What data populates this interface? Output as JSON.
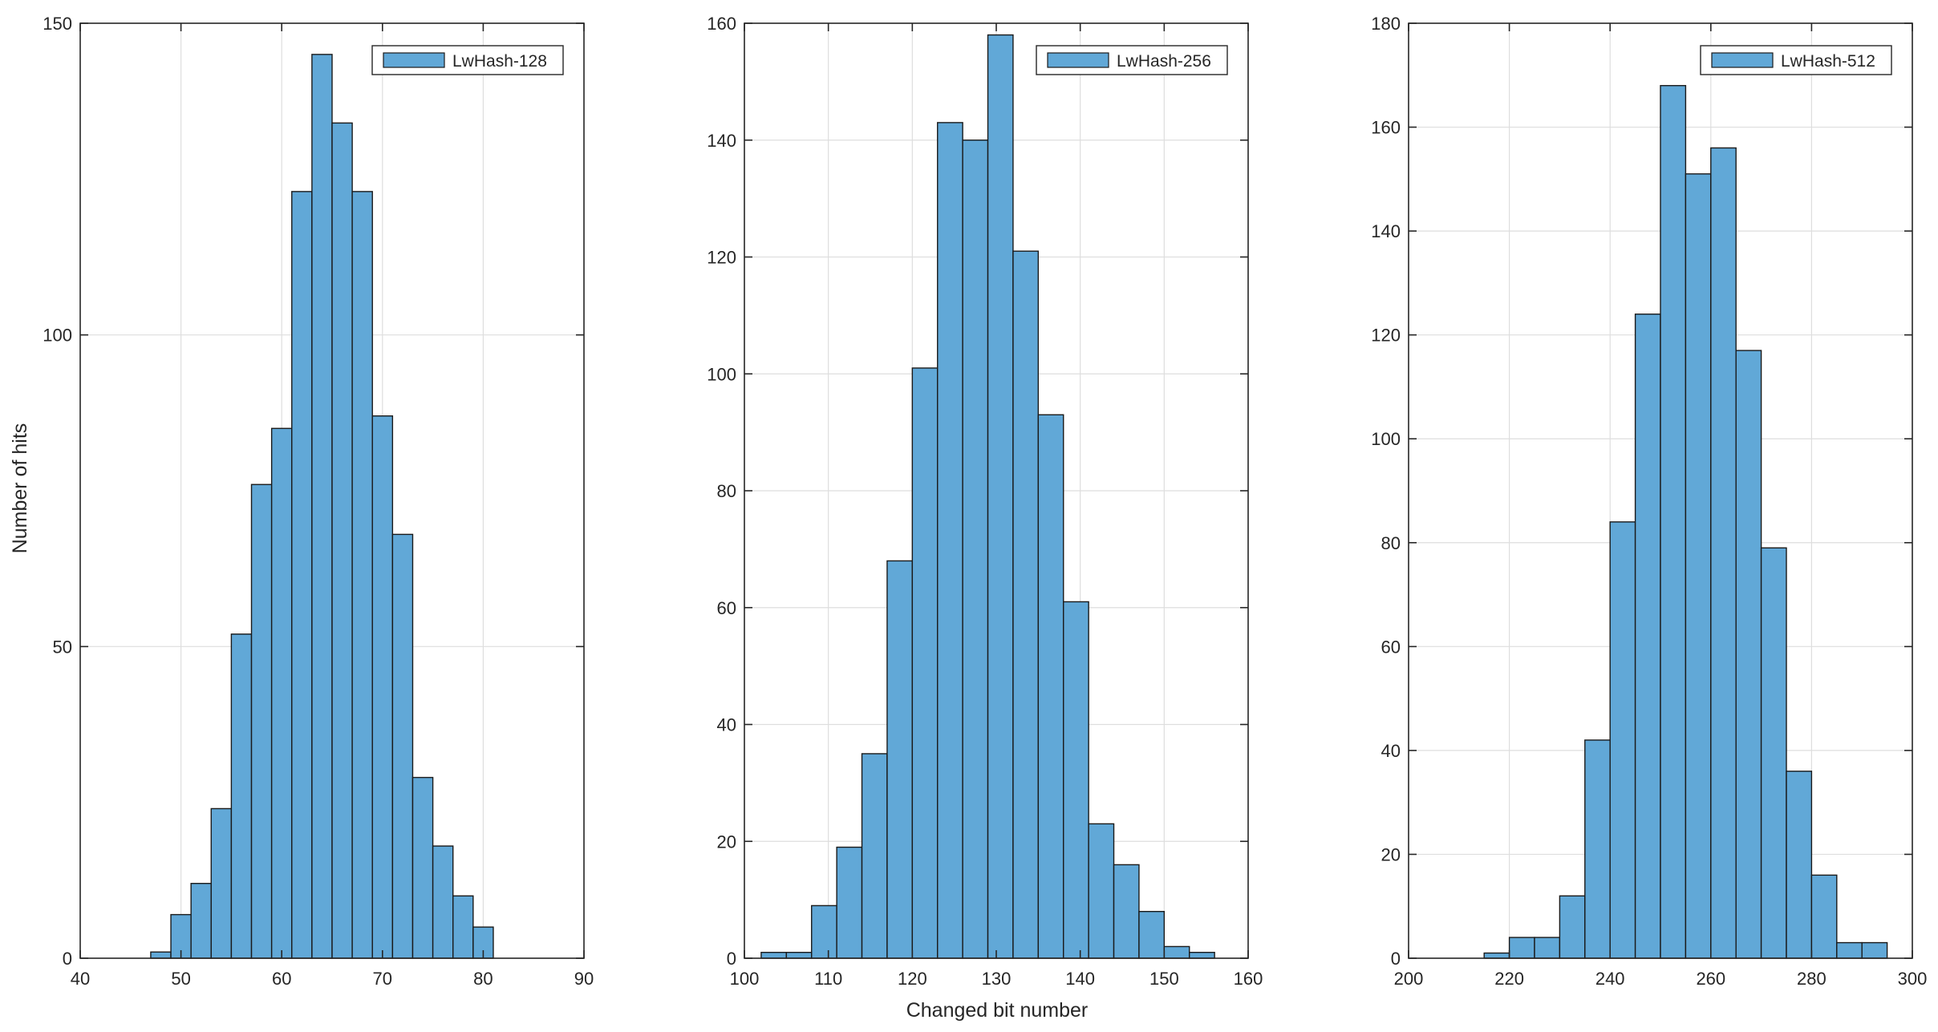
{
  "figure": {
    "ylabel": "Number of hits",
    "xlabel": "Changed bit number"
  },
  "colors": {
    "bar_fill": "#61a8d7",
    "bar_edge": "#1a1a1a",
    "grid": "#dedede",
    "axis": "#262626"
  },
  "chart_data": [
    {
      "type": "bar",
      "histogram": true,
      "legend": "LwHash-128",
      "legend_position": "top-right",
      "bin_width": 2,
      "bin_edges": [
        47,
        49,
        51,
        53,
        55,
        57,
        59,
        61,
        63,
        65,
        67,
        69,
        71,
        73,
        75,
        77,
        79,
        81
      ],
      "values": [
        1,
        7,
        12,
        24,
        52,
        76,
        85,
        123,
        145,
        134,
        123,
        87,
        68,
        29,
        18,
        10,
        5
      ],
      "xlim": [
        40,
        90
      ],
      "ylim": [
        0,
        150
      ],
      "xticks": [
        40,
        50,
        60,
        70,
        80,
        90
      ],
      "yticks": [
        0,
        50,
        100,
        150
      ],
      "grid": true
    },
    {
      "type": "bar",
      "histogram": true,
      "legend": "LwHash-256",
      "legend_position": "top-right",
      "bin_width": 3,
      "bin_edges": [
        102,
        105,
        108,
        111,
        114,
        117,
        120,
        123,
        126,
        129,
        132,
        135,
        138,
        141,
        144,
        147,
        150,
        153,
        156
      ],
      "values": [
        1,
        1,
        9,
        19,
        35,
        68,
        101,
        143,
        140,
        158,
        121,
        93,
        61,
        23,
        16,
        8,
        2,
        1
      ],
      "xlim": [
        100,
        160
      ],
      "ylim": [
        0,
        160
      ],
      "xticks": [
        100,
        110,
        120,
        130,
        140,
        150,
        160
      ],
      "yticks": [
        0,
        20,
        40,
        60,
        80,
        100,
        120,
        140,
        160
      ],
      "grid": true
    },
    {
      "type": "bar",
      "histogram": true,
      "legend": "LwHash-512",
      "legend_position": "top-right",
      "bin_width": 5,
      "bin_edges": [
        215,
        220,
        225,
        230,
        235,
        240,
        245,
        250,
        255,
        260,
        265,
        270,
        275,
        280,
        285,
        290,
        295
      ],
      "values": [
        1,
        4,
        4,
        12,
        42,
        84,
        124,
        168,
        151,
        156,
        117,
        79,
        36,
        16,
        3,
        3
      ],
      "xlim": [
        200,
        300
      ],
      "ylim": [
        0,
        180
      ],
      "xticks": [
        200,
        220,
        240,
        260,
        280,
        300
      ],
      "yticks": [
        0,
        20,
        40,
        60,
        80,
        100,
        120,
        140,
        160,
        180
      ],
      "grid": true
    }
  ]
}
